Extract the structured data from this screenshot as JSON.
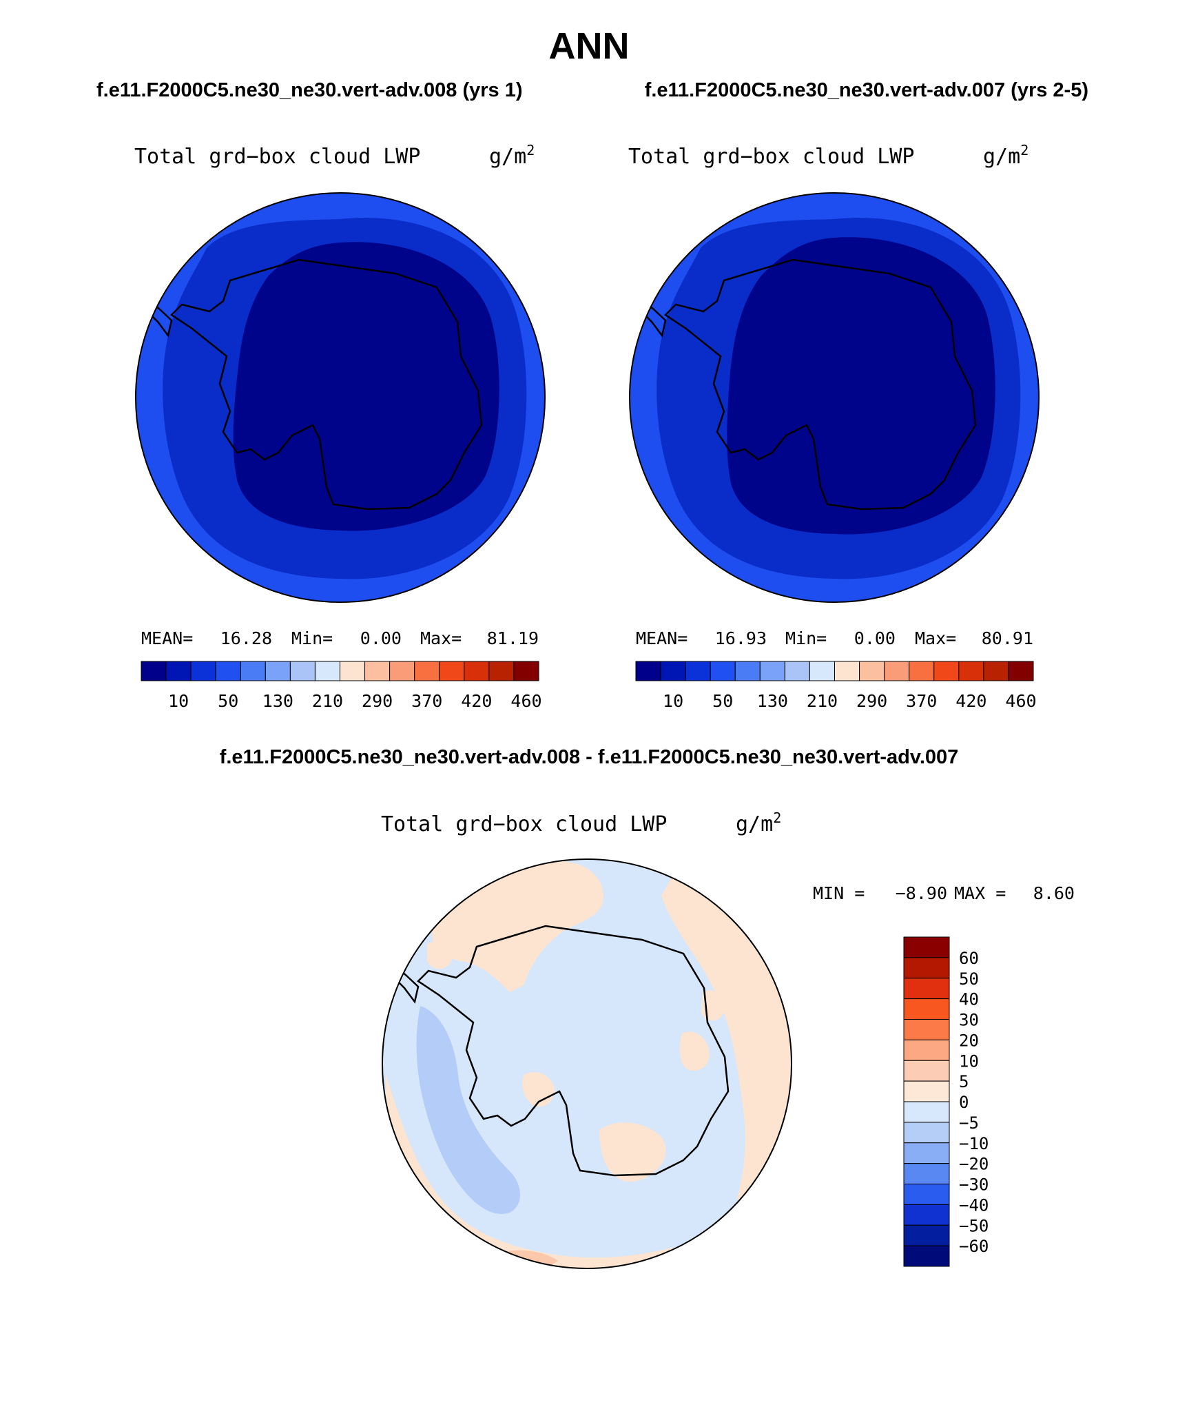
{
  "page": {
    "title": "ANN",
    "subtitle_left": "f.e11.F2000C5.ne30_ne30.vert-adv.008 (yrs 1)",
    "subtitle_right": "f.e11.F2000C5.ne30_ne30.vert-adv.007 (yrs 2-5)",
    "diff_title": "f.e11.F2000C5.ne30_ne30.vert-adv.008 - f.e11.F2000C5.ne30_ne30.vert-adv.007"
  },
  "chart_data": [
    {
      "type": "heatmap",
      "projection": "south polar stereographic",
      "variable": "Total grd−box cloud LWP",
      "units_base": "g/m",
      "units_exp": "2",
      "stats": {
        "mean_label": "MEAN=",
        "mean": "16.28",
        "min_label": "Min=",
        "min": "0.00",
        "max_label": "Max=",
        "max": "81.19"
      },
      "colorbar": {
        "orientation": "horizontal",
        "levels": [
          "10",
          "50",
          "130",
          "210",
          "290",
          "370",
          "420",
          "460"
        ],
        "colors": [
          "#00008a",
          "#0016b4",
          "#0a32d8",
          "#2050f0",
          "#4a7cf5",
          "#7aa2f8",
          "#aac4f8",
          "#d8e8fc",
          "#fde4d0",
          "#fcc0a0",
          "#fa9c78",
          "#f87040",
          "#f04818",
          "#d83008",
          "#b82200",
          "#820000"
        ]
      },
      "rings": [
        {
          "level": "10-50",
          "color": "#1e4ef0"
        },
        {
          "level": "<10 (outer)",
          "color": "#0a2cc8"
        },
        {
          "level": "<10 (inner)",
          "color": "#00048a"
        }
      ]
    },
    {
      "type": "heatmap",
      "projection": "south polar stereographic",
      "variable": "Total grd−box cloud LWP",
      "units_base": "g/m",
      "units_exp": "2",
      "stats": {
        "mean_label": "MEAN=",
        "mean": "16.93",
        "min_label": "Min=",
        "min": "0.00",
        "max_label": "Max=",
        "max": "80.91"
      },
      "colorbar": {
        "orientation": "horizontal",
        "levels": [
          "10",
          "50",
          "130",
          "210",
          "290",
          "370",
          "420",
          "460"
        ],
        "colors": [
          "#00008a",
          "#0016b4",
          "#0a32d8",
          "#2050f0",
          "#4a7cf5",
          "#7aa2f8",
          "#aac4f8",
          "#d8e8fc",
          "#fde4d0",
          "#fcc0a0",
          "#fa9c78",
          "#f87040",
          "#f04818",
          "#d83008",
          "#b82200",
          "#820000"
        ]
      },
      "rings": [
        {
          "level": "10-50",
          "color": "#1e4ef0"
        },
        {
          "level": "<10 (outer)",
          "color": "#0a2cc8"
        },
        {
          "level": "<10 (inner)",
          "color": "#00048a"
        }
      ]
    },
    {
      "type": "heatmap",
      "projection": "south polar stereographic",
      "variable": "Total grd−box cloud LWP",
      "units_base": "g/m",
      "units_exp": "2",
      "stats": {
        "min_label": "MIN =",
        "min": "−8.90",
        "max_label": "MAX =",
        "max": "8.60"
      },
      "colorbar": {
        "orientation": "vertical",
        "levels": [
          "60",
          "50",
          "40",
          "30",
          "20",
          "10",
          "5",
          "0",
          "−5",
          "−10",
          "−20",
          "−30",
          "−40",
          "−50",
          "−60"
        ],
        "colors": [
          "#8a0000",
          "#b41800",
          "#e03010",
          "#f85820",
          "#fc7a48",
          "#fca882",
          "#fcccb4",
          "#fde8d8",
          "#d8e8fc",
          "#b4cef8",
          "#8aaef5",
          "#5a88f2",
          "#2a5cf0",
          "#1032d0",
          "#041ea0",
          "#000a78"
        ]
      },
      "fields": [
        {
          "sign": "positive",
          "color": "#fde4d0"
        },
        {
          "sign": "negative",
          "color": "#d6e6fb"
        },
        {
          "sign": "negative (-5 to -10)",
          "color": "#b4ccf8"
        },
        {
          "sign": "positive (5 to 10)",
          "color": "#fbc8ac"
        }
      ]
    }
  ]
}
